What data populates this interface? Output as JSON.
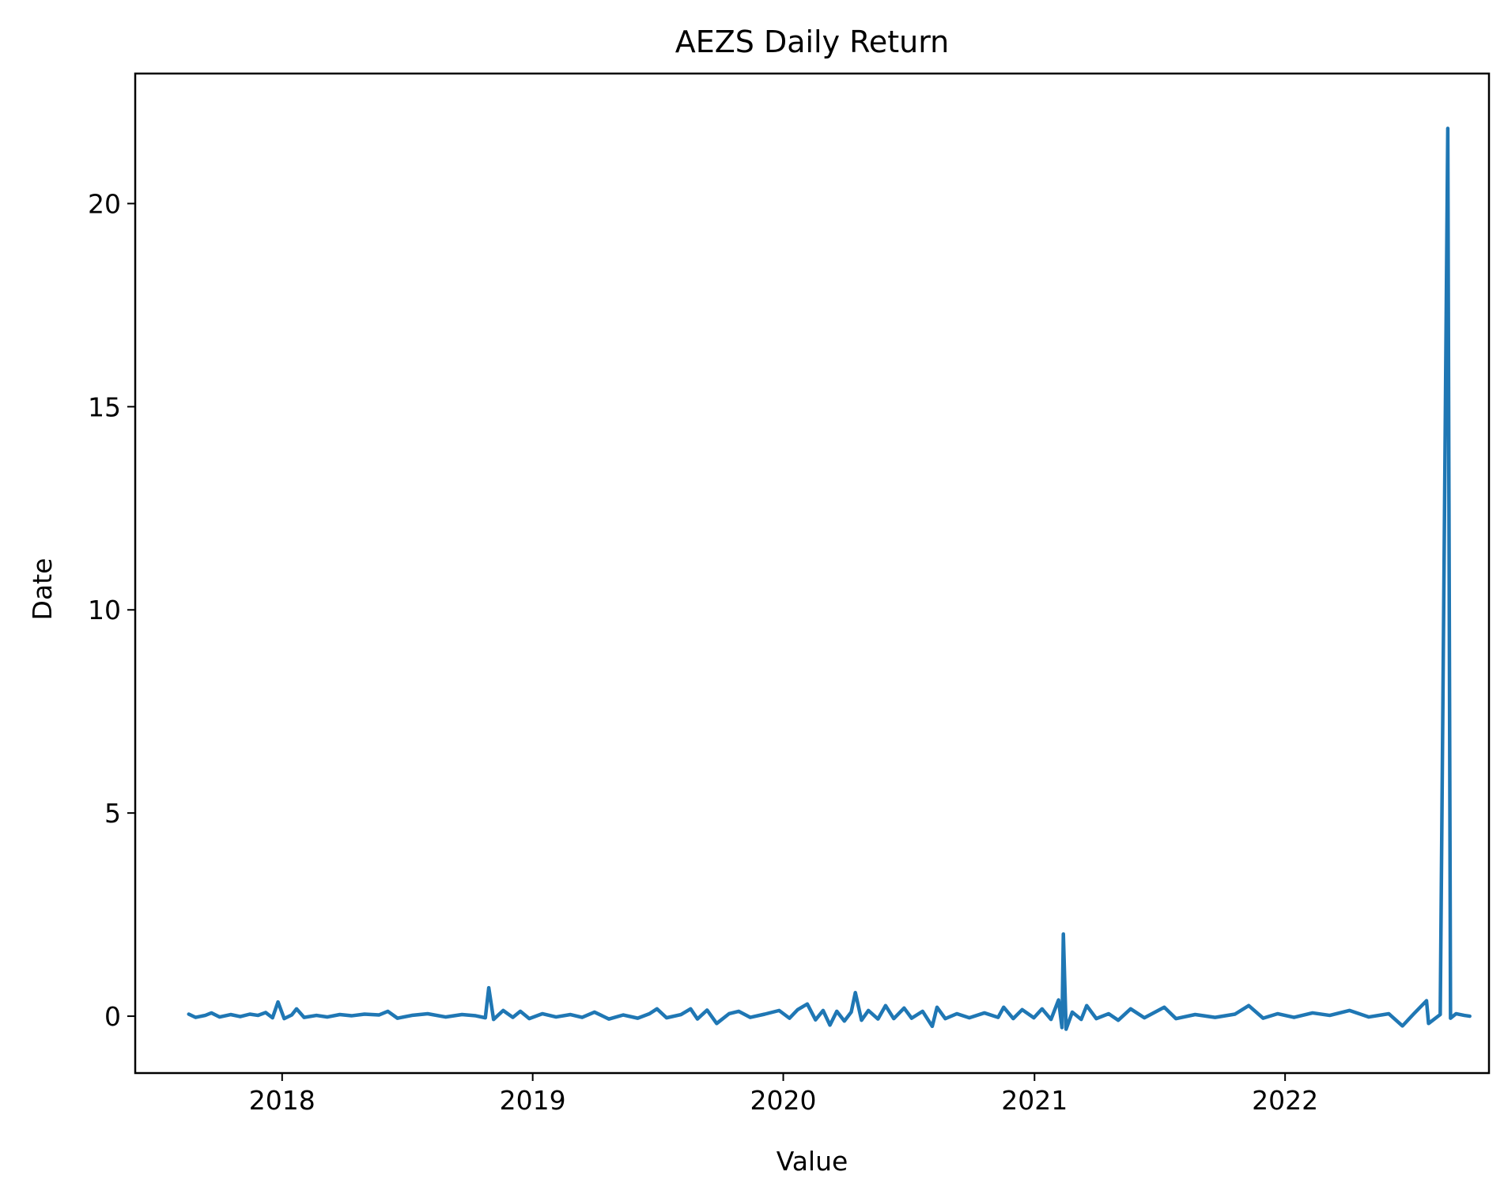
{
  "chart_data": {
    "type": "line",
    "title": "AEZS Daily Return",
    "xlabel": "Value",
    "ylabel": "Date",
    "x_ticks": [
      "2018",
      "2019",
      "2020",
      "2021",
      "2022"
    ],
    "y_ticks": [
      "0",
      "5",
      "10",
      "15",
      "20"
    ],
    "xlim": [
      "2017-06-01",
      "2022-10-25"
    ],
    "ylim": [
      -1.4,
      23.2
    ],
    "grid": false,
    "series": [
      {
        "color": "#1f77b4",
        "points": [
          [
            "2017-08-18",
            0.05
          ],
          [
            "2017-08-28",
            -0.03
          ],
          [
            "2017-09-11",
            0.02
          ],
          [
            "2017-09-20",
            0.08
          ],
          [
            "2017-10-02",
            -0.02
          ],
          [
            "2017-10-18",
            0.04
          ],
          [
            "2017-11-01",
            -0.01
          ],
          [
            "2017-11-15",
            0.05
          ],
          [
            "2017-11-27",
            0.02
          ],
          [
            "2017-12-08",
            0.09
          ],
          [
            "2017-12-18",
            -0.04
          ],
          [
            "2017-12-26",
            0.35
          ],
          [
            "2018-01-04",
            -0.06
          ],
          [
            "2018-01-15",
            0.03
          ],
          [
            "2018-01-22",
            0.18
          ],
          [
            "2018-02-02",
            -0.03
          ],
          [
            "2018-02-20",
            0.02
          ],
          [
            "2018-03-08",
            -0.02
          ],
          [
            "2018-03-26",
            0.04
          ],
          [
            "2018-04-12",
            0.01
          ],
          [
            "2018-05-01",
            0.05
          ],
          [
            "2018-05-22",
            0.03
          ],
          [
            "2018-06-04",
            0.12
          ],
          [
            "2018-06-18",
            -0.05
          ],
          [
            "2018-07-09",
            0.02
          ],
          [
            "2018-08-01",
            0.06
          ],
          [
            "2018-08-27",
            -0.02
          ],
          [
            "2018-09-20",
            0.04
          ],
          [
            "2018-10-10",
            0.01
          ],
          [
            "2018-10-24",
            -0.04
          ],
          [
            "2018-10-29",
            0.7
          ],
          [
            "2018-11-05",
            -0.08
          ],
          [
            "2018-11-19",
            0.14
          ],
          [
            "2018-12-03",
            -0.03
          ],
          [
            "2018-12-14",
            0.12
          ],
          [
            "2018-12-27",
            -0.06
          ],
          [
            "2019-01-15",
            0.06
          ],
          [
            "2019-02-04",
            -0.02
          ],
          [
            "2019-02-25",
            0.04
          ],
          [
            "2019-03-14",
            -0.03
          ],
          [
            "2019-04-01",
            0.1
          ],
          [
            "2019-04-22",
            -0.07
          ],
          [
            "2019-05-13",
            0.03
          ],
          [
            "2019-06-03",
            -0.05
          ],
          [
            "2019-06-20",
            0.06
          ],
          [
            "2019-07-01",
            0.18
          ],
          [
            "2019-07-15",
            -0.04
          ],
          [
            "2019-08-05",
            0.04
          ],
          [
            "2019-08-19",
            0.18
          ],
          [
            "2019-08-29",
            -0.07
          ],
          [
            "2019-09-12",
            0.15
          ],
          [
            "2019-09-26",
            -0.18
          ],
          [
            "2019-10-14",
            0.06
          ],
          [
            "2019-10-28",
            0.12
          ],
          [
            "2019-11-14",
            -0.03
          ],
          [
            "2019-12-05",
            0.05
          ],
          [
            "2019-12-26",
            0.14
          ],
          [
            "2020-01-10",
            -0.05
          ],
          [
            "2020-01-22",
            0.16
          ],
          [
            "2020-02-05",
            0.3
          ],
          [
            "2020-02-17",
            -0.09
          ],
          [
            "2020-02-28",
            0.14
          ],
          [
            "2020-03-09",
            -0.22
          ],
          [
            "2020-03-19",
            0.12
          ],
          [
            "2020-03-30",
            -0.12
          ],
          [
            "2020-04-09",
            0.1
          ],
          [
            "2020-04-15",
            0.58
          ],
          [
            "2020-04-24",
            -0.1
          ],
          [
            "2020-05-04",
            0.14
          ],
          [
            "2020-05-18",
            -0.07
          ],
          [
            "2020-05-29",
            0.26
          ],
          [
            "2020-06-10",
            -0.06
          ],
          [
            "2020-06-25",
            0.2
          ],
          [
            "2020-07-06",
            -0.05
          ],
          [
            "2020-07-22",
            0.12
          ],
          [
            "2020-08-05",
            -0.25
          ],
          [
            "2020-08-12",
            0.22
          ],
          [
            "2020-08-24",
            -0.06
          ],
          [
            "2020-09-10",
            0.06
          ],
          [
            "2020-09-28",
            -0.04
          ],
          [
            "2020-10-20",
            0.08
          ],
          [
            "2020-11-09",
            -0.03
          ],
          [
            "2020-11-17",
            0.22
          ],
          [
            "2020-12-01",
            -0.06
          ],
          [
            "2020-12-14",
            0.16
          ],
          [
            "2020-12-31",
            -0.04
          ],
          [
            "2021-01-12",
            0.18
          ],
          [
            "2021-01-25",
            -0.08
          ],
          [
            "2021-02-05",
            0.4
          ],
          [
            "2021-02-10",
            -0.28
          ],
          [
            "2021-02-12",
            2.02
          ],
          [
            "2021-02-16",
            -0.32
          ],
          [
            "2021-02-25",
            0.1
          ],
          [
            "2021-03-10",
            -0.08
          ],
          [
            "2021-03-18",
            0.26
          ],
          [
            "2021-04-01",
            -0.06
          ],
          [
            "2021-04-19",
            0.06
          ],
          [
            "2021-05-03",
            -0.1
          ],
          [
            "2021-05-21",
            0.18
          ],
          [
            "2021-06-10",
            -0.04
          ],
          [
            "2021-07-09",
            0.22
          ],
          [
            "2021-07-26",
            -0.06
          ],
          [
            "2021-08-23",
            0.04
          ],
          [
            "2021-09-21",
            -0.03
          ],
          [
            "2021-10-20",
            0.05
          ],
          [
            "2021-11-09",
            0.26
          ],
          [
            "2021-11-30",
            -0.05
          ],
          [
            "2021-12-21",
            0.06
          ],
          [
            "2022-01-14",
            -0.03
          ],
          [
            "2022-02-10",
            0.08
          ],
          [
            "2022-03-07",
            0.02
          ],
          [
            "2022-04-05",
            0.14
          ],
          [
            "2022-05-03",
            -0.02
          ],
          [
            "2022-06-01",
            0.06
          ],
          [
            "2022-06-21",
            -0.24
          ],
          [
            "2022-07-07",
            0.05
          ],
          [
            "2022-07-26",
            0.38
          ],
          [
            "2022-07-29",
            -0.18
          ],
          [
            "2022-08-15",
            0.04
          ],
          [
            "2022-08-26",
            21.85
          ],
          [
            "2022-08-30",
            -0.05
          ],
          [
            "2022-09-07",
            0.06
          ],
          [
            "2022-09-19",
            0.02
          ],
          [
            "2022-09-27",
            0.0
          ]
        ]
      }
    ]
  }
}
